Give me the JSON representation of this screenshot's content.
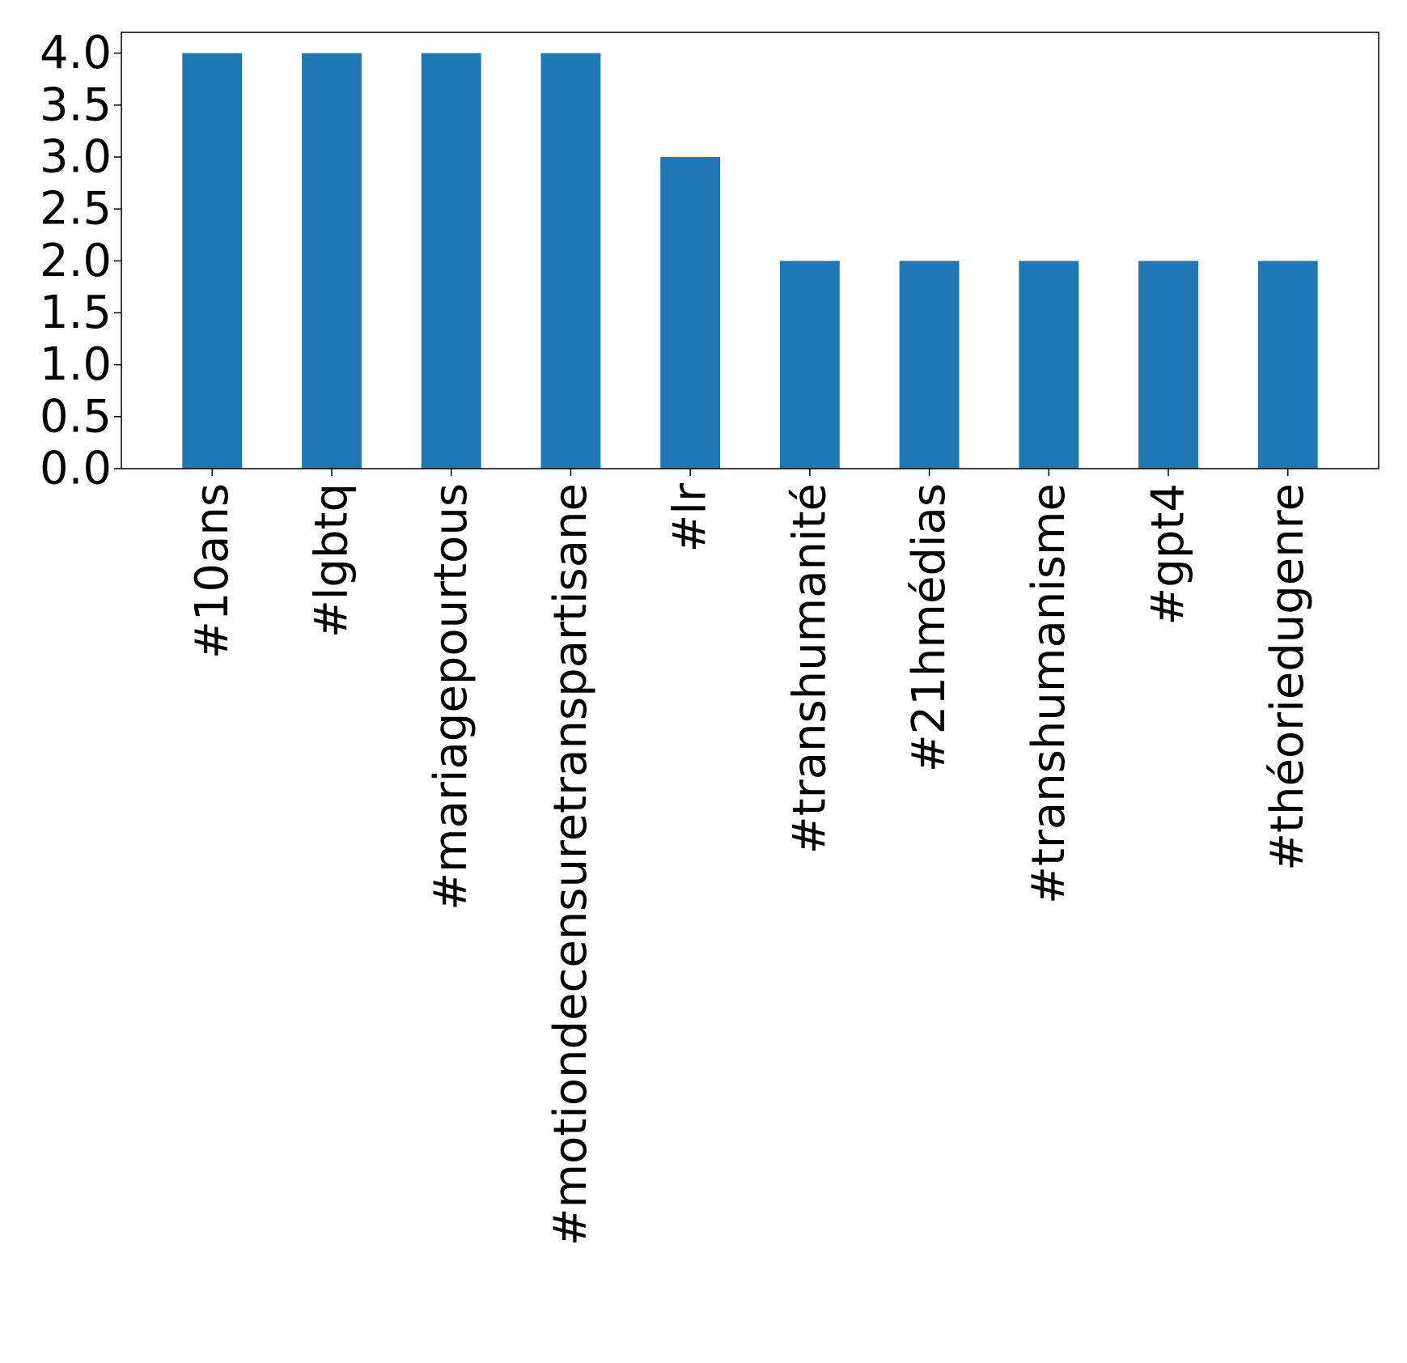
{
  "chart_data": {
    "type": "bar",
    "title": "",
    "xlabel": "",
    "ylabel": "",
    "categories": [
      "#10ans",
      "#lgbtq",
      "#mariagepourtous",
      "#motiondecensuretranspartisane",
      "#lr",
      "#transhumanité",
      "#21hmédias",
      "#transhumanisme",
      "#gpt4",
      "#théoriedugenre"
    ],
    "values": [
      4,
      4,
      4,
      4,
      3,
      2,
      2,
      2,
      2,
      2
    ],
    "ylim": [
      0,
      4.2
    ],
    "yticks": [
      "0.0",
      "0.5",
      "1.0",
      "1.5",
      "2.0",
      "2.5",
      "3.0",
      "3.5",
      "4.0"
    ],
    "bar_color": "#1f77b4",
    "grid": false,
    "legend": "none"
  }
}
